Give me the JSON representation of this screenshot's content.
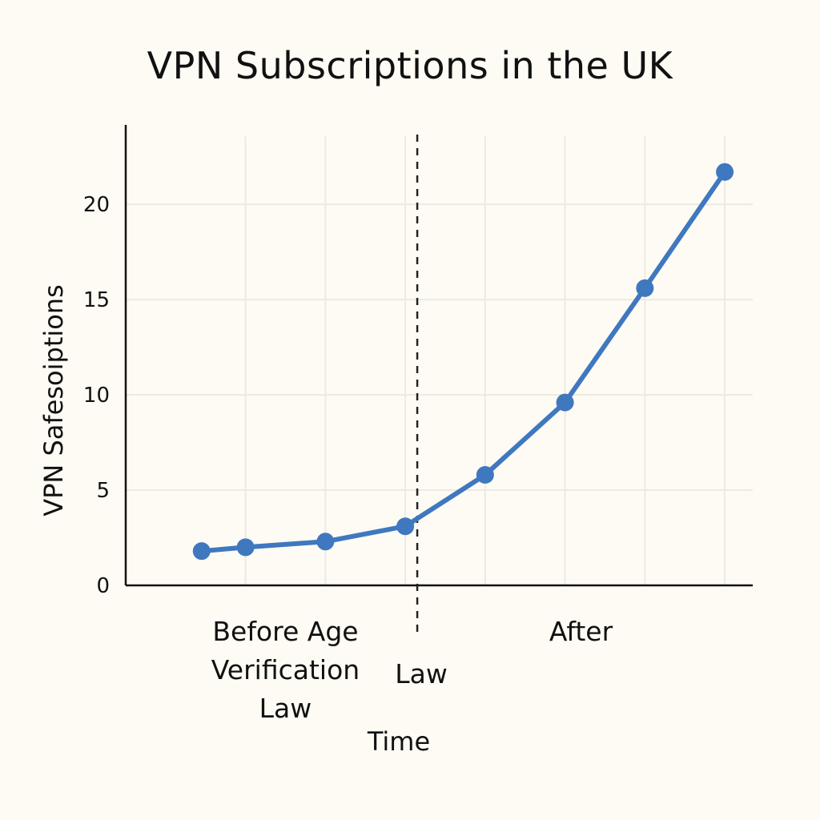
{
  "chart_data": {
    "type": "line",
    "title": "VPN Subscriptions in the UK",
    "xlabel": "Time",
    "ylabel": "VPN Safesoiptions",
    "ylim": [
      0,
      24
    ],
    "yticks": [
      0,
      5,
      10,
      15,
      20
    ],
    "grid": true,
    "series": [
      {
        "color": "#3f78bf",
        "points": [
          {
            "x": 0.45,
            "y": 1.8
          },
          {
            "x": 1,
            "y": 2.0
          },
          {
            "x": 2,
            "y": 2.3
          },
          {
            "x": 3,
            "y": 3.1
          },
          {
            "x": 4,
            "y": 5.8
          },
          {
            "x": 5,
            "y": 9.6
          },
          {
            "x": 6,
            "y": 15.6
          },
          {
            "x": 7,
            "y": 21.7
          }
        ]
      }
    ],
    "xlim": [
      -0.5,
      7.35
    ],
    "xgrid": [
      1,
      2,
      3,
      4,
      5,
      6,
      7
    ],
    "event_line": {
      "x": 3.15,
      "label": "Law"
    },
    "region_labels": [
      {
        "lines": [
          "Before Age",
          "Verification",
          "Law"
        ],
        "x": 1.5
      },
      {
        "lines": [
          "After"
        ],
        "x": 5.2
      }
    ]
  }
}
